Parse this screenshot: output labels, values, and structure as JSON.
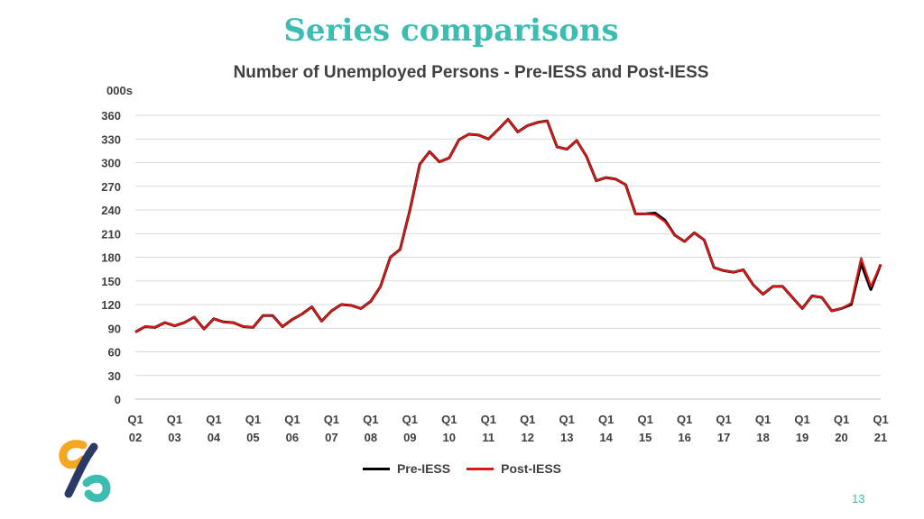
{
  "slide": {
    "title": "Series comparisons",
    "page_number": "13"
  },
  "colors": {
    "accent": "#3dbdb2",
    "logo_orange": "#f5a623",
    "logo_navy": "#2b3a64",
    "logo_teal": "#3dbdb2"
  },
  "logo": {
    "icon": "infinity-link-logo"
  },
  "chart_data": {
    "type": "line",
    "title": "Number of Unemployed Persons - Pre-IESS and Post-IESS",
    "ylabel": "000s",
    "xlabel": "",
    "ylim": [
      0,
      360
    ],
    "yticks": [
      0,
      30,
      60,
      90,
      120,
      150,
      180,
      210,
      240,
      270,
      300,
      330,
      360
    ],
    "grid": true,
    "legend": "bottom",
    "x_tick_labels": [
      {
        "q": "Q1",
        "y": "02"
      },
      {
        "q": "Q1",
        "y": "03"
      },
      {
        "q": "Q1",
        "y": "04"
      },
      {
        "q": "Q1",
        "y": "05"
      },
      {
        "q": "Q1",
        "y": "06"
      },
      {
        "q": "Q1",
        "y": "07"
      },
      {
        "q": "Q1",
        "y": "08"
      },
      {
        "q": "Q1",
        "y": "09"
      },
      {
        "q": "Q1",
        "y": "10"
      },
      {
        "q": "Q1",
        "y": "11"
      },
      {
        "q": "Q1",
        "y": "12"
      },
      {
        "q": "Q1",
        "y": "13"
      },
      {
        "q": "Q1",
        "y": "14"
      },
      {
        "q": "Q1",
        "y": "15"
      },
      {
        "q": "Q1",
        "y": "16"
      },
      {
        "q": "Q1",
        "y": "17"
      },
      {
        "q": "Q1",
        "y": "18"
      },
      {
        "q": "Q1",
        "y": "19"
      },
      {
        "q": "Q1",
        "y": "20"
      },
      {
        "q": "Q1",
        "y": "21"
      }
    ],
    "x": [
      "Q1 02",
      "Q2 02",
      "Q3 02",
      "Q4 02",
      "Q1 03",
      "Q2 03",
      "Q3 03",
      "Q4 03",
      "Q1 04",
      "Q2 04",
      "Q3 04",
      "Q4 04",
      "Q1 05",
      "Q2 05",
      "Q3 05",
      "Q4 05",
      "Q1 06",
      "Q2 06",
      "Q3 06",
      "Q4 06",
      "Q1 07",
      "Q2 07",
      "Q3 07",
      "Q4 07",
      "Q1 08",
      "Q2 08",
      "Q3 08",
      "Q4 08",
      "Q1 09",
      "Q2 09",
      "Q3 09",
      "Q4 09",
      "Q1 10",
      "Q2 10",
      "Q3 10",
      "Q4 10",
      "Q1 11",
      "Q2 11",
      "Q3 11",
      "Q4 11",
      "Q1 12",
      "Q2 12",
      "Q3 12",
      "Q4 12",
      "Q1 13",
      "Q2 13",
      "Q3 13",
      "Q4 13",
      "Q1 14",
      "Q2 14",
      "Q3 14",
      "Q4 14",
      "Q1 15",
      "Q2 15",
      "Q3 15",
      "Q4 15",
      "Q1 16",
      "Q2 16",
      "Q3 16",
      "Q4 16",
      "Q1 17",
      "Q2 17",
      "Q3 17",
      "Q4 17",
      "Q1 18",
      "Q2 18",
      "Q3 18",
      "Q4 18",
      "Q1 19",
      "Q2 19",
      "Q3 19",
      "Q4 19",
      "Q1 20",
      "Q2 20",
      "Q3 20",
      "Q4 20",
      "Q1 21"
    ],
    "series": [
      {
        "name": "Pre-IESS",
        "color": "#000000",
        "values": [
          85,
          92,
          91,
          97,
          93,
          97,
          104,
          89,
          102,
          98,
          97,
          92,
          91,
          106,
          106,
          92,
          101,
          108,
          117,
          99,
          112,
          120,
          119,
          115,
          124,
          143,
          180,
          190,
          240,
          298,
          314,
          301,
          306,
          329,
          336,
          335,
          330,
          342,
          355,
          339,
          347,
          351,
          353,
          320,
          317,
          328,
          308,
          277,
          281,
          279,
          272,
          235,
          235,
          236,
          227,
          208,
          200,
          211,
          202,
          167,
          163,
          161,
          164,
          145,
          133,
          143,
          143,
          129,
          115,
          131,
          129,
          112,
          115,
          120,
          172,
          139,
          171
        ]
      },
      {
        "name": "Post-IESS",
        "color": "#e01515",
        "values": [
          85,
          92,
          91,
          97,
          93,
          97,
          104,
          89,
          102,
          98,
          97,
          92,
          91,
          106,
          106,
          92,
          101,
          108,
          117,
          99,
          112,
          120,
          119,
          115,
          124,
          143,
          180,
          190,
          240,
          298,
          314,
          301,
          306,
          329,
          336,
          335,
          330,
          342,
          355,
          339,
          347,
          351,
          353,
          320,
          317,
          328,
          308,
          277,
          281,
          279,
          272,
          235,
          235,
          234,
          225,
          208,
          200,
          211,
          202,
          167,
          163,
          161,
          164,
          145,
          133,
          143,
          143,
          129,
          115,
          131,
          129,
          112,
          115,
          122,
          179,
          143,
          171
        ]
      }
    ]
  }
}
